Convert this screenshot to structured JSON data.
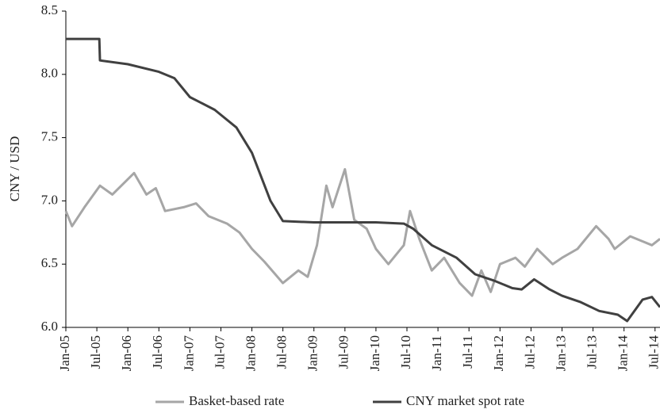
{
  "chart_data": {
    "type": "line",
    "y_label": "CNY / USD",
    "xlim": [
      2005,
      2014.58
    ],
    "xticks": [
      {
        "value": 2005,
        "label": "Jan-05"
      },
      {
        "value": 2005.5,
        "label": "Jul-05"
      },
      {
        "value": 2006,
        "label": "Jan-06"
      },
      {
        "value": 2006.5,
        "label": "Jul-06"
      },
      {
        "value": 2007,
        "label": "Jan-07"
      },
      {
        "value": 2007.5,
        "label": "Jul-07"
      },
      {
        "value": 2008,
        "label": "Jan-08"
      },
      {
        "value": 2008.5,
        "label": "Jul-08"
      },
      {
        "value": 2009,
        "label": "Jan-09"
      },
      {
        "value": 2009.5,
        "label": "Jul-09"
      },
      {
        "value": 2010,
        "label": "Jan-10"
      },
      {
        "value": 2010.5,
        "label": "Jul-10"
      },
      {
        "value": 2011,
        "label": "Jan-11"
      },
      {
        "value": 2011.5,
        "label": "Jul-11"
      },
      {
        "value": 2012,
        "label": "Jan-12"
      },
      {
        "value": 2012.5,
        "label": "Jul-12"
      },
      {
        "value": 2013,
        "label": "Jan-13"
      },
      {
        "value": 2013.5,
        "label": "Jul-13"
      },
      {
        "value": 2014,
        "label": "Jan-14"
      },
      {
        "value": 2014.5,
        "label": "Jul-14"
      }
    ],
    "ylim": [
      6.0,
      8.5
    ],
    "yticks": [
      {
        "value": 6.0,
        "label": "6.0"
      },
      {
        "value": 6.5,
        "label": "6.5"
      },
      {
        "value": 7.0,
        "label": "7.0"
      },
      {
        "value": 7.5,
        "label": "7.5"
      },
      {
        "value": 8.0,
        "label": "8.0"
      },
      {
        "value": 8.5,
        "label": "8.5"
      }
    ],
    "series": [
      {
        "name": "Basket-based rate",
        "color": "#a6a6a6",
        "x": [
          2005,
          2005.1,
          2005.3,
          2005.55,
          2005.75,
          2006.1,
          2006.3,
          2006.45,
          2006.6,
          2006.9,
          2007.1,
          2007.3,
          2007.6,
          2007.8,
          2008.0,
          2008.2,
          2008.5,
          2008.75,
          2008.9,
          2009.05,
          2009.2,
          2009.3,
          2009.5,
          2009.65,
          2009.85,
          2010.0,
          2010.2,
          2010.45,
          2010.55,
          2010.7,
          2010.9,
          2011.1,
          2011.35,
          2011.55,
          2011.7,
          2011.85,
          2012.0,
          2012.25,
          2012.4,
          2012.6,
          2012.85,
          2013.0,
          2013.25,
          2013.55,
          2013.75,
          2013.85,
          2014.1,
          2014.3,
          2014.45,
          2014.58
        ],
        "values": [
          6.92,
          6.8,
          6.95,
          7.12,
          7.05,
          7.22,
          7.05,
          7.1,
          6.92,
          6.95,
          6.98,
          6.88,
          6.82,
          6.75,
          6.62,
          6.52,
          6.35,
          6.45,
          6.4,
          6.65,
          7.12,
          6.95,
          7.25,
          6.85,
          6.78,
          6.62,
          6.5,
          6.65,
          6.92,
          6.7,
          6.45,
          6.55,
          6.35,
          6.25,
          6.45,
          6.28,
          6.5,
          6.55,
          6.48,
          6.62,
          6.5,
          6.55,
          6.62,
          6.8,
          6.7,
          6.62,
          6.72,
          6.68,
          6.65,
          6.7
        ]
      },
      {
        "name": "CNY market spot rate",
        "color": "#404040",
        "x": [
          2005,
          2005.54,
          2005.55,
          2006.0,
          2006.5,
          2006.75,
          2007.0,
          2007.4,
          2007.75,
          2008.0,
          2008.3,
          2008.5,
          2009.0,
          2010.0,
          2010.45,
          2010.6,
          2010.9,
          2011.3,
          2011.6,
          2011.9,
          2012.2,
          2012.35,
          2012.55,
          2012.8,
          2013.0,
          2013.3,
          2013.6,
          2013.9,
          2014.05,
          2014.3,
          2014.45,
          2014.58
        ],
        "values": [
          8.28,
          8.28,
          8.11,
          8.08,
          8.02,
          7.97,
          7.82,
          7.72,
          7.58,
          7.38,
          7.0,
          6.84,
          6.83,
          6.83,
          6.82,
          6.78,
          6.65,
          6.55,
          6.42,
          6.37,
          6.31,
          6.3,
          6.38,
          6.3,
          6.25,
          6.2,
          6.13,
          6.1,
          6.05,
          6.22,
          6.24,
          6.16
        ]
      }
    ]
  }
}
